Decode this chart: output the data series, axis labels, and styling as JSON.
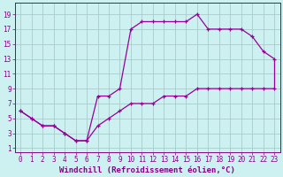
{
  "xlabel": "Windchill (Refroidissement éolien,°C)",
  "bg_color": "#cdf0f0",
  "grid_color": "#aacccc",
  "line_color": "#990099",
  "xlim": [
    -0.5,
    23.5
  ],
  "ylim": [
    0.5,
    20.5
  ],
  "xticks": [
    0,
    1,
    2,
    3,
    4,
    5,
    6,
    7,
    8,
    9,
    10,
    11,
    12,
    13,
    14,
    15,
    16,
    17,
    18,
    19,
    20,
    21,
    22,
    23
  ],
  "yticks": [
    1,
    3,
    5,
    7,
    9,
    11,
    13,
    15,
    17,
    19
  ],
  "curve_x": [
    0,
    1,
    2,
    3,
    4,
    5,
    6,
    7,
    8,
    9,
    10,
    11,
    12,
    13,
    14,
    15,
    16,
    17,
    18,
    19,
    20,
    21,
    22,
    23
  ],
  "curve1_y": [
    6,
    5,
    4,
    4,
    3,
    2,
    2,
    8,
    8,
    9,
    17,
    18,
    18,
    18,
    18,
    18,
    19,
    17,
    17,
    17,
    17,
    16,
    14,
    13
  ],
  "curve2_y": [
    6,
    5,
    4,
    4,
    3,
    2,
    2,
    4,
    5,
    6,
    7,
    7,
    7,
    8,
    8,
    8,
    9,
    9,
    9,
    9,
    9,
    9,
    9,
    9
  ],
  "font_color": "#880088",
  "tick_fontsize": 5.5,
  "label_fontsize": 6.5,
  "linewidth": 0.9,
  "markersize": 3.5
}
